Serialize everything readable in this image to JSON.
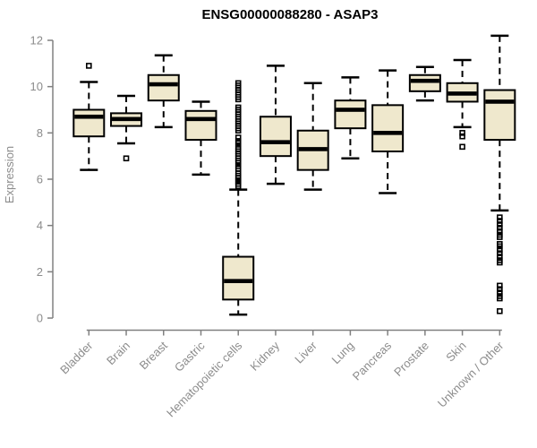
{
  "chart_data": {
    "type": "boxplot",
    "title": "ENSG00000088280 - ASAP3",
    "ylabel": "Expression",
    "xlabel": "",
    "ylim": [
      0,
      12.3
    ],
    "yticks": [
      0,
      2,
      4,
      6,
      8,
      10,
      12
    ],
    "grid": false,
    "legend": "none",
    "categories": [
      "Bladder",
      "Brain",
      "Breast",
      "Gastric",
      "Hematopoietic cells",
      "Kidney",
      "Liver",
      "Lung",
      "Pancreas",
      "Prostate",
      "Skin",
      "Unknown / Other"
    ],
    "series": [
      {
        "name": "Bladder",
        "whisker_low": 6.4,
        "q1": 7.85,
        "median": 8.7,
        "q3": 9.0,
        "whisker_high": 10.2,
        "outliers": [
          10.9
        ]
      },
      {
        "name": "Brain",
        "whisker_low": 7.55,
        "q1": 8.3,
        "median": 8.6,
        "q3": 8.85,
        "whisker_high": 9.6,
        "outliers": [
          6.9
        ]
      },
      {
        "name": "Breast",
        "whisker_low": 8.25,
        "q1": 9.4,
        "median": 10.1,
        "q3": 10.5,
        "whisker_high": 11.35,
        "outliers": []
      },
      {
        "name": "Gastric",
        "whisker_low": 6.2,
        "q1": 7.7,
        "median": 8.6,
        "q3": 8.95,
        "whisker_high": 9.35,
        "outliers": []
      },
      {
        "name": "Hematopoietic cells",
        "whisker_low": 0.15,
        "q1": 0.8,
        "median": 1.6,
        "q3": 2.65,
        "whisker_high": 5.55,
        "outliers": [
          5.7,
          5.8,
          5.9,
          5.95,
          6.05,
          6.15,
          6.25,
          6.45,
          6.55,
          6.7,
          6.8,
          6.9,
          7.0,
          7.1,
          7.2,
          7.3,
          7.4,
          7.55,
          7.65,
          7.8,
          8.1,
          8.2,
          8.3,
          8.4,
          8.5,
          8.6,
          8.7,
          8.8,
          8.9,
          9.0,
          9.1,
          9.45,
          9.55,
          9.65,
          9.75,
          9.85,
          9.95,
          10.05,
          10.15
        ]
      },
      {
        "name": "Kidney",
        "whisker_low": 5.8,
        "q1": 7.0,
        "median": 7.6,
        "q3": 8.7,
        "whisker_high": 10.9,
        "outliers": []
      },
      {
        "name": "Liver",
        "whisker_low": 5.55,
        "q1": 6.4,
        "median": 7.3,
        "q3": 8.1,
        "whisker_high": 10.15,
        "outliers": []
      },
      {
        "name": "Lung",
        "whisker_low": 6.9,
        "q1": 8.2,
        "median": 9.0,
        "q3": 9.4,
        "whisker_high": 10.4,
        "outliers": []
      },
      {
        "name": "Pancreas",
        "whisker_low": 5.4,
        "q1": 7.2,
        "median": 8.0,
        "q3": 9.2,
        "whisker_high": 10.7,
        "outliers": []
      },
      {
        "name": "Prostate",
        "whisker_low": 9.4,
        "q1": 9.8,
        "median": 10.25,
        "q3": 10.5,
        "whisker_high": 10.85,
        "outliers": []
      },
      {
        "name": "Skin",
        "whisker_low": 8.25,
        "q1": 9.35,
        "median": 9.7,
        "q3": 10.15,
        "whisker_high": 11.15,
        "outliers": [
          8.0,
          7.85,
          7.4
        ]
      },
      {
        "name": "Unknown / Other",
        "whisker_low": 4.65,
        "q1": 7.7,
        "median": 9.35,
        "q3": 9.85,
        "whisker_high": 12.2,
        "outliers": [
          4.35,
          4.2,
          4.05,
          3.9,
          3.75,
          3.6,
          3.5,
          3.2,
          3.1,
          2.95,
          2.8,
          2.65,
          2.5,
          2.4,
          1.4,
          1.25,
          1.1,
          0.95,
          0.85,
          0.3
        ]
      }
    ]
  },
  "colors": {
    "box_fill": "#EFE8CD",
    "box_border": "#000000",
    "median": "#000000",
    "whisker": "#000000",
    "outlier": "#000000",
    "axis": "#808080",
    "tick_text": "#8C8C8C",
    "title_text": "#000000",
    "background": "#FFFFFF"
  }
}
